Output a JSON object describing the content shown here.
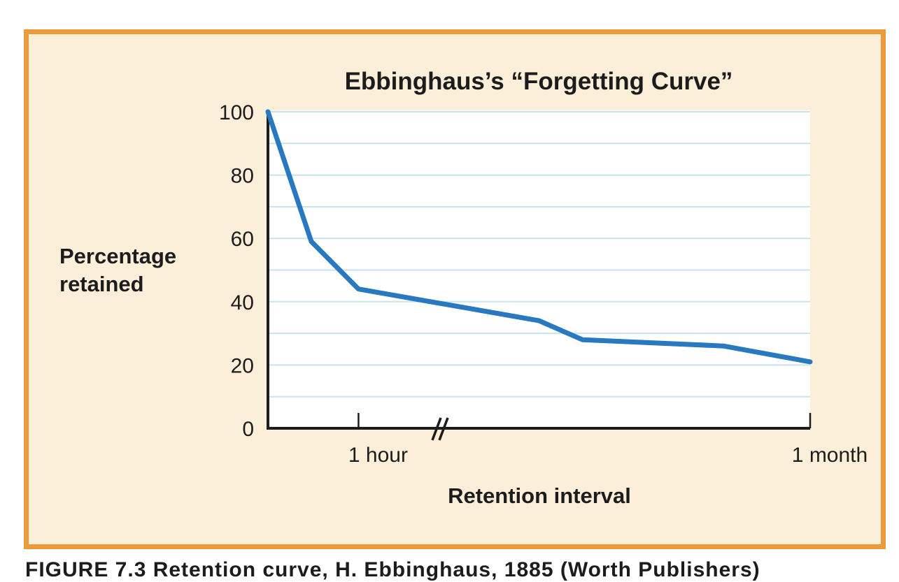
{
  "chart_data": {
    "type": "line",
    "title": "Ebbinghaus’s “Forgetting Curve”",
    "xlabel": "Retention interval",
    "ylabel": [
      "Percentage",
      "retained"
    ],
    "ylim": [
      0,
      100
    ],
    "yticks": [
      0,
      20,
      40,
      60,
      80,
      100
    ],
    "x_ticks": [
      {
        "label": "1 hour",
        "x": 0.167
      },
      {
        "label": "1 month",
        "x": 1.0
      }
    ],
    "axis_break": true,
    "grid": true,
    "line_color": "#2979c0",
    "series": [
      {
        "values": [
          {
            "x": 0.0,
            "y": 100
          },
          {
            "x": 0.08,
            "y": 59
          },
          {
            "x": 0.167,
            "y": 44
          },
          {
            "x": 0.5,
            "y": 34
          },
          {
            "x": 0.58,
            "y": 28
          },
          {
            "x": 0.84,
            "y": 26
          },
          {
            "x": 1.0,
            "y": 21
          }
        ]
      }
    ]
  },
  "caption": "FIGURE 7.3  Retention curve, H. Ebbinghaus, 1885 (Worth Publishers)"
}
